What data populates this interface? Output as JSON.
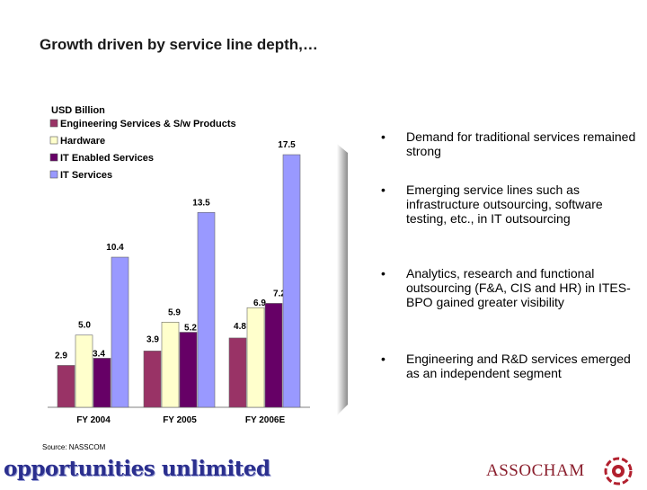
{
  "page": {
    "title": "Growth driven by service line depth,…",
    "source": "Source: NASSCOM",
    "brand_left": "opportunities unlimited",
    "brand_right": "ASSOCHAM"
  },
  "bullets": [
    "Demand for traditional services remained strong",
    "Emerging service lines such as infrastructure outsourcing, software testing, etc., in IT outsourcing",
    "Analytics, research and functional outsourcing (F&A, CIS and HR) in ITES-BPO gained greater visibility",
    "Engineering and R&D services emerged as an independent segment"
  ],
  "chart_data": {
    "type": "bar",
    "unit_label": "USD Billion",
    "categories": [
      "FY 2004",
      "FY 2005",
      "FY 2006E"
    ],
    "series": [
      {
        "name": "Engineering Services & S/w Products",
        "color": "#993366",
        "values": [
          2.9,
          3.9,
          4.8
        ]
      },
      {
        "name": "Hardware",
        "color": "#ffffcc",
        "values": [
          5.0,
          5.9,
          6.9
        ]
      },
      {
        "name": "IT Enabled Services",
        "color": "#660066",
        "values": [
          3.4,
          5.2,
          7.2
        ]
      },
      {
        "name": "IT Services",
        "color": "#9999ff",
        "values": [
          10.4,
          13.5,
          17.5
        ]
      }
    ],
    "ylim": [
      0,
      19
    ],
    "legend_position": "top-left",
    "grid": false
  }
}
